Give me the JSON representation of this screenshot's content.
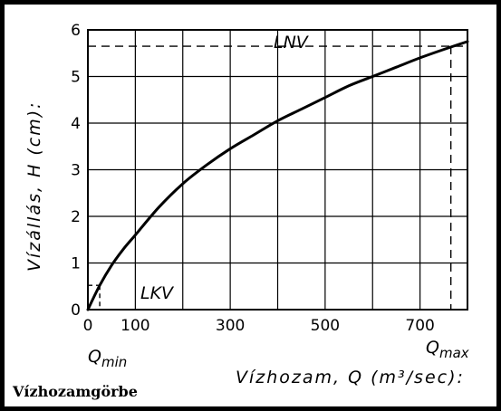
{
  "caption": "Vízhozamgörbe",
  "chart_data": {
    "type": "line",
    "title": "",
    "xlabel": "Vízhozam, Q (m³/sec):",
    "ylabel": "Vízállás, H (cm):",
    "xlim": [
      0,
      800
    ],
    "ylim": [
      0,
      6
    ],
    "grid": true,
    "x_ticks": [
      {
        "value": 0,
        "label": "0"
      },
      {
        "value": 100,
        "label": "100"
      },
      {
        "value": 300,
        "label": "300"
      },
      {
        "value": 500,
        "label": "500"
      },
      {
        "value": 700,
        "label": "700"
      }
    ],
    "x_grid": [
      0,
      100,
      200,
      300,
      400,
      500,
      600,
      700,
      800
    ],
    "y_ticks": [
      {
        "value": 0,
        "label": "0"
      },
      {
        "value": 1,
        "label": "1"
      },
      {
        "value": 2,
        "label": "2"
      },
      {
        "value": 3,
        "label": "3"
      },
      {
        "value": 4,
        "label": "4"
      },
      {
        "value": 5,
        "label": "5"
      },
      {
        "value": 6,
        "label": "6"
      }
    ],
    "series": [
      {
        "name": "",
        "x": [
          0,
          25,
          50,
          75,
          100,
          150,
          200,
          250,
          300,
          350,
          400,
          450,
          500,
          550,
          600,
          650,
          700,
          750,
          800
        ],
        "y": [
          0,
          0.52,
          0.95,
          1.3,
          1.6,
          2.2,
          2.7,
          3.1,
          3.45,
          3.75,
          4.05,
          4.3,
          4.55,
          4.8,
          5.0,
          5.2,
          5.4,
          5.58,
          5.75
        ]
      }
    ],
    "annotations": {
      "lnv": {
        "label": "LNV",
        "level": 5.65,
        "q": 765
      },
      "lkv": {
        "label": "LKV",
        "level": 0.52,
        "q": 25
      },
      "qmin": {
        "label": "Q",
        "sub": "min"
      },
      "qmax": {
        "label": "Q",
        "sub": "max"
      }
    }
  }
}
